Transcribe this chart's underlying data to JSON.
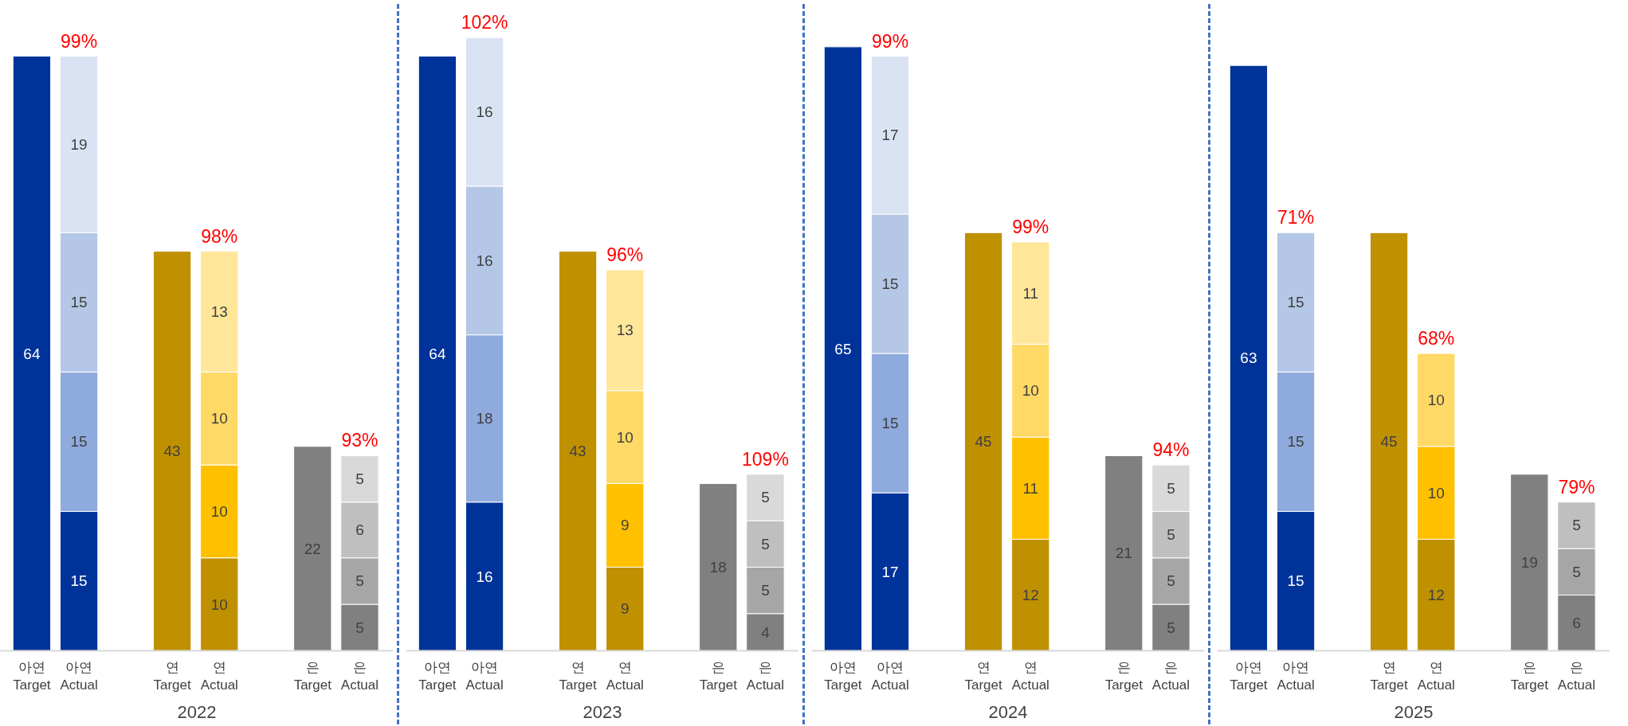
{
  "chart_data": [
    {
      "type": "bar",
      "stacked": true,
      "xlabel": "2022",
      "categories": [
        "아연\nTarget",
        "아연\nActual",
        "연\nTarget",
        "연\nActual",
        "은\nTarget",
        "은\nActual"
      ],
      "ylim": [
        0,
        70
      ],
      "tick_labels": "x",
      "data_labels": true,
      "grid": false,
      "series": [
        {
          "values": [
            64,
            15,
            43,
            10,
            22,
            5
          ],
          "colors": [
            "#003399",
            "#003399",
            "#bf9000",
            "#bf9000",
            "#808080",
            "#808080"
          ]
        },
        {
          "values": [
            null,
            15,
            null,
            10,
            null,
            5
          ],
          "colors": [
            null,
            "#8faadc",
            null,
            "#ffc000",
            null,
            "#a6a6a6"
          ]
        },
        {
          "values": [
            null,
            15,
            null,
            10,
            null,
            6
          ],
          "colors": [
            null,
            "#b4c7e7",
            null,
            "#ffd966",
            null,
            "#bfbfbf"
          ]
        },
        {
          "values": [
            null,
            19,
            null,
            13,
            null,
            5
          ],
          "colors": [
            null,
            "#dae3f3",
            null,
            "#ffe699",
            null,
            "#d9d9d9"
          ]
        }
      ],
      "annotations": [
        {
          "text": "99%",
          "x": "아연\nActual",
          "y": 64
        },
        {
          "text": "98%",
          "x": "연\nActual",
          "y": 43
        },
        {
          "text": "93%",
          "x": "은\nActual",
          "y": 21
        }
      ]
    },
    {
      "type": "bar",
      "stacked": true,
      "xlabel": "2023",
      "categories": [
        "아연\nTarget",
        "아연\nActual",
        "연\nTarget",
        "연\nActual",
        "은\nTarget",
        "은\nActual"
      ],
      "ylim": [
        0,
        70
      ],
      "tick_labels": "x",
      "data_labels": true,
      "grid": false,
      "series": [
        {
          "values": [
            64,
            16,
            43,
            9,
            18,
            4
          ],
          "colors": [
            "#003399",
            "#003399",
            "#bf9000",
            "#bf9000",
            "#808080",
            "#808080"
          ]
        },
        {
          "values": [
            null,
            18,
            null,
            9,
            null,
            5
          ],
          "colors": [
            null,
            "#8faadc",
            null,
            "#ffc000",
            null,
            "#a6a6a6"
          ]
        },
        {
          "values": [
            null,
            16,
            null,
            10,
            null,
            5
          ],
          "colors": [
            null,
            "#b4c7e7",
            null,
            "#ffd966",
            null,
            "#bfbfbf"
          ]
        },
        {
          "values": [
            null,
            16,
            null,
            13,
            null,
            5
          ],
          "colors": [
            null,
            "#dae3f3",
            null,
            "#ffe699",
            null,
            "#d9d9d9"
          ]
        }
      ],
      "annotations": [
        {
          "text": "102%",
          "x": "아연\nActual",
          "y": 66
        },
        {
          "text": "96%",
          "x": "연\nActual",
          "y": 41
        },
        {
          "text": "109%",
          "x": "은\nActual",
          "y": 19
        }
      ]
    },
    {
      "type": "bar",
      "stacked": true,
      "xlabel": "2024",
      "categories": [
        "아연\nTarget",
        "아연\nActual",
        "연\nTarget",
        "연\nActual",
        "은\nTarget",
        "은\nActual"
      ],
      "ylim": [
        0,
        70
      ],
      "tick_labels": "x",
      "data_labels": true,
      "grid": false,
      "series": [
        {
          "values": [
            65,
            17,
            45,
            12,
            21,
            5
          ],
          "colors": [
            "#003399",
            "#003399",
            "#bf9000",
            "#bf9000",
            "#808080",
            "#808080"
          ]
        },
        {
          "values": [
            null,
            15,
            null,
            11,
            null,
            5
          ],
          "colors": [
            null,
            "#8faadc",
            null,
            "#ffc000",
            null,
            "#a6a6a6"
          ]
        },
        {
          "values": [
            null,
            15,
            null,
            10,
            null,
            5
          ],
          "colors": [
            null,
            "#b4c7e7",
            null,
            "#ffd966",
            null,
            "#bfbfbf"
          ]
        },
        {
          "values": [
            null,
            17,
            null,
            11,
            null,
            5
          ],
          "colors": [
            null,
            "#dae3f3",
            null,
            "#ffe699",
            null,
            "#d9d9d9"
          ]
        }
      ],
      "annotations": [
        {
          "text": "99%",
          "x": "아연\nActual",
          "y": 64
        },
        {
          "text": "99%",
          "x": "연\nActual",
          "y": 44
        },
        {
          "text": "94%",
          "x": "은\nActual",
          "y": 20
        }
      ]
    },
    {
      "type": "bar",
      "stacked": true,
      "xlabel": "2025",
      "categories": [
        "아연\nTarget",
        "아연\nActual",
        "연\nTarget",
        "연\nActual",
        "은\nTarget",
        "은\nActual"
      ],
      "ylim": [
        0,
        70
      ],
      "tick_labels": "x",
      "data_labels": true,
      "grid": false,
      "series": [
        {
          "values": [
            63,
            15,
            45,
            12,
            19,
            6
          ],
          "colors": [
            "#003399",
            "#003399",
            "#bf9000",
            "#bf9000",
            "#808080",
            "#808080"
          ]
        },
        {
          "values": [
            null,
            15,
            null,
            10,
            null,
            5
          ],
          "colors": [
            null,
            "#8faadc",
            null,
            "#ffc000",
            null,
            "#a6a6a6"
          ]
        },
        {
          "values": [
            null,
            15,
            null,
            10,
            null,
            5
          ],
          "colors": [
            null,
            "#b4c7e7",
            null,
            "#ffd966",
            null,
            "#bfbfbf"
          ]
        }
      ],
      "annotations": [
        {
          "text": "71%",
          "x": "아연\nActual",
          "y": 45
        },
        {
          "text": "68%",
          "x": "연\nActual",
          "y": 32
        },
        {
          "text": "79%",
          "x": "은\nActual",
          "y": 16
        }
      ]
    }
  ]
}
